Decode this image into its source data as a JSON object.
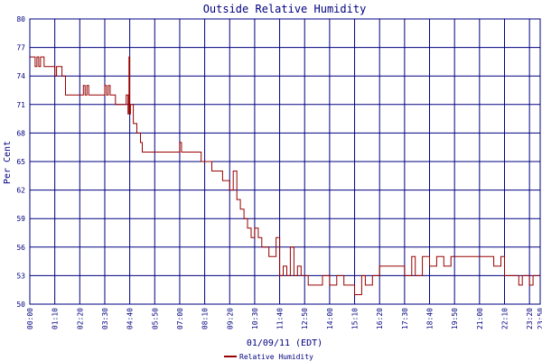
{
  "chart_data": {
    "type": "line",
    "title": "Outside Relative Humidity",
    "xlabel": "01/09/11 (EDT)",
    "ylabel": "Per Cent",
    "ylim": [
      50,
      80
    ],
    "y_ticks": [
      50,
      53,
      56,
      59,
      62,
      65,
      68,
      71,
      74,
      77,
      80
    ],
    "x_range": [
      "00:00",
      "23:50"
    ],
    "x_ticks": [
      "00:00",
      "01:10",
      "02:20",
      "03:30",
      "04:40",
      "05:50",
      "07:00",
      "08:10",
      "09:20",
      "10:30",
      "11:40",
      "12:50",
      "14:00",
      "15:10",
      "16:20",
      "17:30",
      "18:40",
      "19:50",
      "21:00",
      "22:10",
      "23:20",
      "23:50"
    ],
    "grid": true,
    "legend_position": "bottom-center",
    "colors": {
      "series": "#990000",
      "grid": "#000080",
      "text": "#000080",
      "background": "#ffffff"
    },
    "series": [
      {
        "name": "Relative Humidity",
        "x": [
          "00:00",
          "00:10",
          "00:15",
          "00:20",
          "00:25",
          "00:30",
          "00:35",
          "00:40",
          "01:00",
          "01:10",
          "01:15",
          "01:30",
          "01:40",
          "02:00",
          "02:30",
          "02:35",
          "02:40",
          "02:45",
          "03:00",
          "03:30",
          "03:35",
          "03:40",
          "03:45",
          "04:00",
          "04:20",
          "04:30",
          "04:35",
          "04:38",
          "04:40",
          "04:42",
          "04:50",
          "05:00",
          "05:10",
          "05:15",
          "05:20",
          "05:30",
          "05:50",
          "06:30",
          "07:00",
          "07:05",
          "07:10",
          "07:20",
          "08:00",
          "08:20",
          "08:30",
          "08:40",
          "09:00",
          "09:20",
          "09:30",
          "09:40",
          "09:50",
          "10:00",
          "10:10",
          "10:20",
          "10:30",
          "10:40",
          "10:50",
          "11:00",
          "11:10",
          "11:20",
          "11:30",
          "11:40",
          "11:50",
          "12:00",
          "12:10",
          "12:20",
          "12:30",
          "12:40",
          "12:50",
          "13:00",
          "13:20",
          "13:40",
          "14:00",
          "14:20",
          "14:40",
          "15:00",
          "15:10",
          "15:30",
          "15:40",
          "16:00",
          "16:20",
          "16:40",
          "17:00",
          "17:20",
          "17:30",
          "17:50",
          "18:00",
          "18:20",
          "18:40",
          "19:00",
          "19:20",
          "19:40",
          "19:50",
          "20:10",
          "20:40",
          "21:00",
          "21:20",
          "21:40",
          "22:00",
          "22:10",
          "22:30",
          "22:40",
          "22:50",
          "23:00",
          "23:20",
          "23:30",
          "23:40",
          "23:50"
        ],
        "y": [
          76,
          76,
          75,
          76,
          75,
          76,
          76,
          75,
          75,
          74,
          75,
          74,
          72,
          72,
          73,
          72,
          73,
          72,
          72,
          73,
          72,
          73,
          72,
          71,
          71,
          72,
          70,
          76,
          70,
          71,
          69,
          68,
          67,
          66,
          66,
          66,
          66,
          66,
          67,
          66,
          66,
          66,
          65,
          65,
          64,
          64,
          63,
          62,
          64,
          61,
          60,
          59,
          58,
          57,
          58,
          57,
          56,
          56,
          55,
          55,
          57,
          53,
          54,
          53,
          56,
          53,
          54,
          53,
          53,
          52,
          52,
          53,
          52,
          53,
          52,
          52,
          51,
          53,
          52,
          53,
          54,
          54,
          54,
          54,
          53,
          55,
          53,
          55,
          54,
          55,
          54,
          55,
          55,
          55,
          55,
          55,
          55,
          54,
          55,
          53,
          53,
          53,
          52,
          53,
          52,
          53,
          53,
          54
        ]
      }
    ]
  }
}
